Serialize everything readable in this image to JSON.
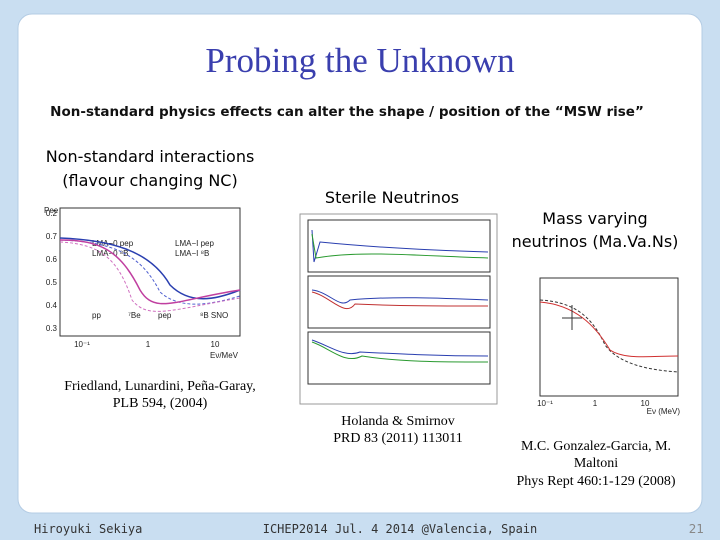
{
  "slide": {
    "title": "Probing the Unknown",
    "subtitle": "Non-standard physics effects can alter the shape / position of the “MSW rise”",
    "panels": [
      {
        "heading": [
          "Non-standard interactions",
          "(flavour changing NC)"
        ],
        "citation": [
          "Friedland, Lunardini, Peña-Garay,",
          "PLB 594, (2004)"
        ],
        "plot": {
          "ylabel": "Pee",
          "yticks": [
            "0.7",
            "0.6",
            "0.5",
            "0.4",
            "0.3",
            "0.2"
          ],
          "xticks": [
            "10⁻¹",
            "1",
            "10"
          ],
          "xlabel": "Eν/MeV",
          "legend": [
            "LMA−0 pep",
            "LMA−0 ⁸B",
            "LMA−I pep",
            "LMA−I ⁸B"
          ],
          "regions": [
            "pp",
            "⁷Be",
            "pep",
            "⁸B SNO"
          ]
        }
      },
      {
        "heading": [
          "Sterile Neutrinos"
        ],
        "citation": [
          "Holanda & Smirnov",
          "PRD 83 (2011) 113011"
        ]
      },
      {
        "heading": [
          "Mass varying",
          "neutrinos (Ma.Va.Ns)"
        ],
        "citation": [
          "M.C. Gonzalez-Garcia, M.",
          "Maltoni",
          "Phys Rept 460:1-129 (2008)"
        ],
        "plot": {
          "xticks": [
            "10⁻¹",
            "1",
            "10"
          ],
          "xlabel": "Eν (MeV)"
        }
      }
    ],
    "footer": {
      "author": "Hiroyuki Sekiya",
      "event": "ICHEP2014  Jul. 4 2014  @Valencia, Spain",
      "page": "21"
    }
  }
}
